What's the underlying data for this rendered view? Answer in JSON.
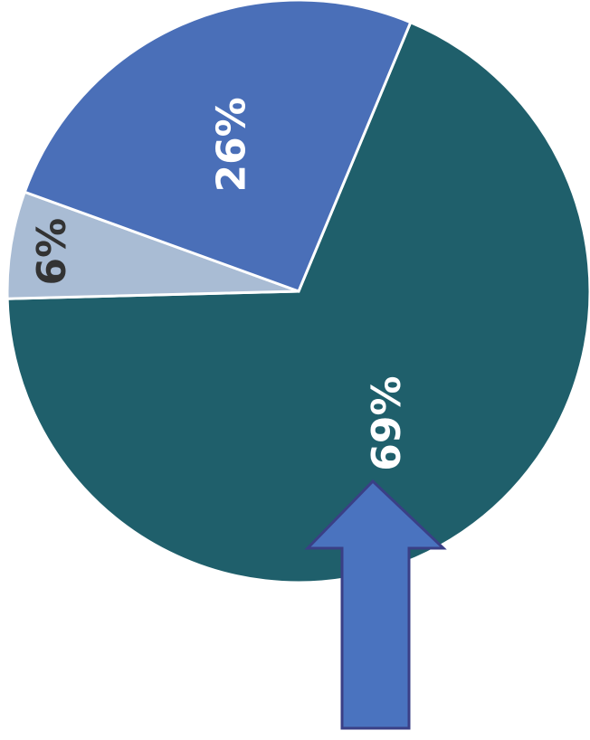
{
  "chart_data": {
    "type": "pie",
    "categories": [
      null,
      null,
      null
    ],
    "values": [
      69,
      6,
      26
    ],
    "value_labels": [
      "69%",
      "6%",
      "26%"
    ],
    "colors": [
      "#1f5f6b",
      "#a9bcd4",
      "#4a6fb8"
    ]
  }
}
